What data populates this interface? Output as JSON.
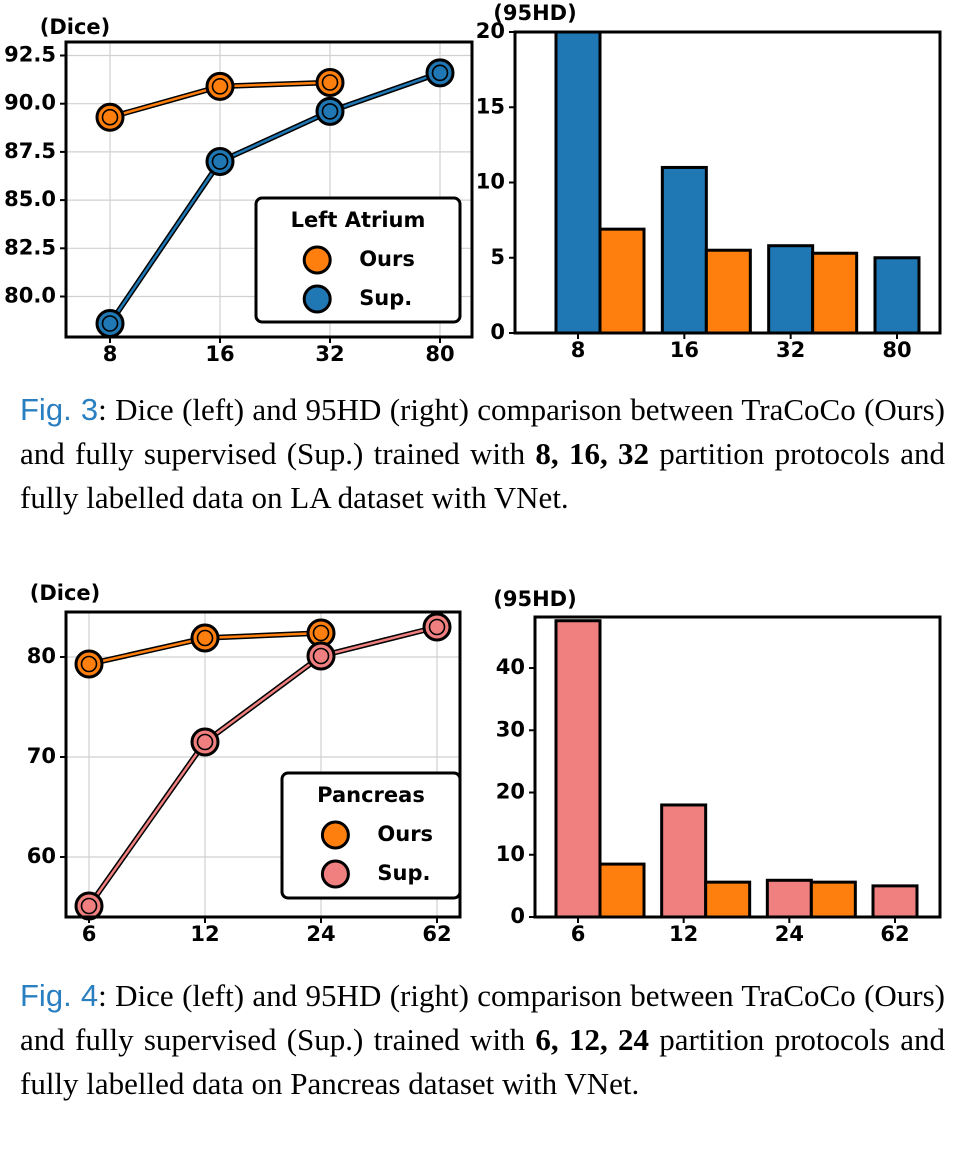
{
  "chart_data": [
    {
      "type": "line",
      "y_label": "(Dice)",
      "legend_title": "Left Atrium",
      "legend": "lower right",
      "grid": true,
      "categories": [
        "8",
        "16",
        "32",
        "80"
      ],
      "ylim": [
        77.9,
        93.2
      ],
      "yticks": [
        {
          "value": 80,
          "label": "80.0"
        },
        {
          "value": 82.5,
          "label": "82.5"
        },
        {
          "value": 85,
          "label": "85.0"
        },
        {
          "value": 87.5,
          "label": "87.5"
        },
        {
          "value": 90,
          "label": "90.0"
        },
        {
          "value": 92.5,
          "label": "92.5"
        }
      ],
      "series": [
        {
          "name": "Ours",
          "color": "#ff7f0e",
          "values": [
            89.3,
            90.9,
            91.1,
            null
          ]
        },
        {
          "name": "Sup.",
          "color": "#1f77b4",
          "values": [
            78.6,
            87.0,
            89.6,
            91.6
          ]
        }
      ]
    },
    {
      "type": "bar",
      "y_label": "(95HD)",
      "grid": false,
      "categories": [
        "8",
        "16",
        "32",
        "80"
      ],
      "ylim": [
        0,
        20
      ],
      "yticks": [
        0,
        5,
        10,
        15,
        20
      ],
      "series": [
        {
          "color": "#1f77b4",
          "values": [
            20,
            11.0,
            5.8,
            5.0
          ]
        },
        {
          "color": "#ff7f0e",
          "values": [
            6.9,
            5.5,
            5.3,
            null
          ]
        }
      ]
    },
    {
      "type": "line",
      "y_label": "(Dice)",
      "legend_title": "Pancreas",
      "legend": "lower right",
      "grid": true,
      "categories": [
        "6",
        "12",
        "24",
        "62"
      ],
      "ylim": [
        54,
        84.5
      ],
      "yticks": [
        60,
        70,
        80
      ],
      "series": [
        {
          "name": "Ours",
          "color": "#ff7f0e",
          "values": [
            79.3,
            81.9,
            82.4,
            null
          ]
        },
        {
          "name": "Sup.",
          "color": "#f08080",
          "values": [
            55.1,
            71.5,
            80.1,
            83.0
          ]
        }
      ]
    },
    {
      "type": "bar",
      "y_label": "(95HD)",
      "grid": false,
      "categories": [
        "6",
        "12",
        "24",
        "62"
      ],
      "ylim": [
        0,
        48.2
      ],
      "yticks": [
        0,
        10,
        20,
        30,
        40
      ],
      "series": [
        {
          "color": "#f08080",
          "values": [
            47.6,
            18.0,
            5.9,
            5.0
          ]
        },
        {
          "color": "#ff7f0e",
          "values": [
            8.5,
            5.6,
            5.6,
            null
          ]
        }
      ]
    }
  ],
  "captions": [
    {
      "label": "Fig. 3",
      "parts": [
        {
          "text": ": Dice (left) and 95HD (right) comparison between TraCoCo (Ours) and fully supervised (Sup.) trained with ",
          "bold": false
        },
        {
          "text": "8, 16, 32",
          "bold": true
        },
        {
          "text": " partition protocols and fully labelled data on LA dataset with VNet.",
          "bold": false
        }
      ]
    },
    {
      "label": "Fig. 4",
      "parts": [
        {
          "text": ": Dice (left) and 95HD (right) comparison between TraCoCo (Ours) and fully supervised (Sup.) trained with ",
          "bold": false
        },
        {
          "text": "6, 12, 24",
          "bold": true
        },
        {
          "text": " partition protocols and fully labelled data on Pancreas dataset with VNet.",
          "bold": false
        }
      ]
    }
  ]
}
